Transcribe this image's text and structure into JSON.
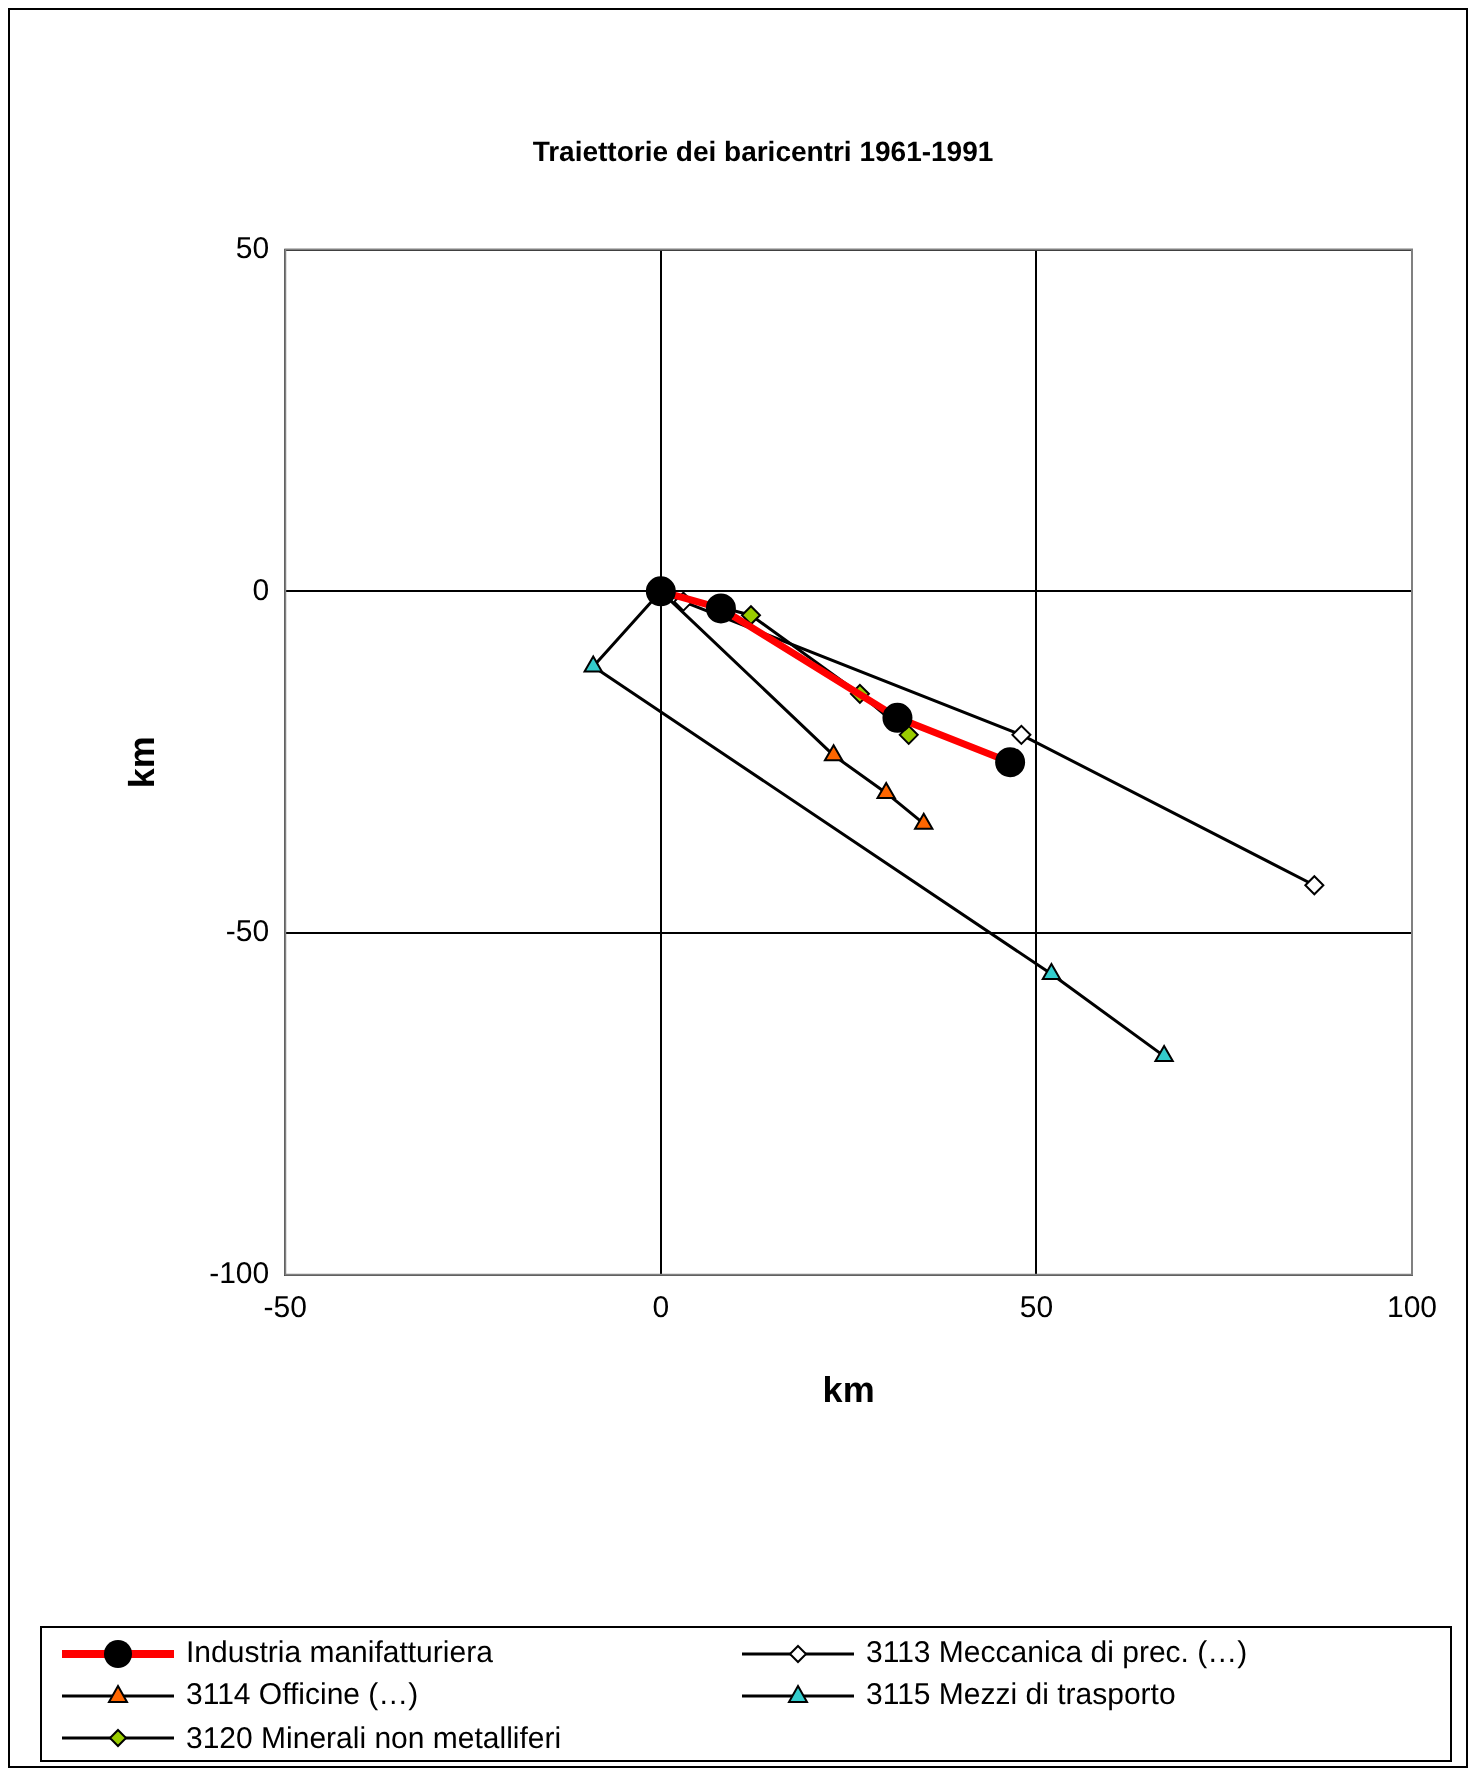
{
  "chart_data": {
    "type": "line",
    "title": "Traiettorie dei baricentri 1961-1991",
    "xlabel": "km",
    "ylabel": "km",
    "xlim": [
      -50,
      100
    ],
    "xticks": [
      -50,
      0,
      50,
      100
    ],
    "ylim": [
      -100,
      50
    ],
    "yticks": [
      -100,
      -50,
      0,
      50
    ],
    "grid": true,
    "legend": "bottom",
    "series": [
      {
        "name": "Industria manifatturiera",
        "color": "#ff0000",
        "marker": "circle",
        "x": [
          0,
          8,
          31.5,
          46.5
        ],
        "values": [
          0,
          -2.5,
          -18.5,
          -25
        ]
      },
      {
        "name": "3113 Meccanica di prec. (…)",
        "color": "#ffffff",
        "marker": "diamond",
        "x": [
          0,
          3,
          48,
          87
        ],
        "values": [
          0,
          -1.5,
          -21,
          -43
        ]
      },
      {
        "name": "3114 Officine (…)",
        "color": "#ff6600",
        "marker": "triangle",
        "x": [
          0,
          23,
          30,
          35
        ],
        "values": [
          0,
          -24,
          -29.5,
          -34
        ]
      },
      {
        "name": "3115 Mezzi di trasporto",
        "color": "#33cccc",
        "marker": "triangle",
        "x": [
          0,
          -9,
          52,
          67
        ],
        "values": [
          0,
          -11,
          -56,
          -68
        ]
      },
      {
        "name": "3120 Minerali non metalliferi",
        "color": "#99cc00",
        "marker": "diamond",
        "x": [
          0,
          12,
          26.5,
          33
        ],
        "values": [
          0,
          -3.5,
          -15,
          -21
        ]
      }
    ]
  }
}
